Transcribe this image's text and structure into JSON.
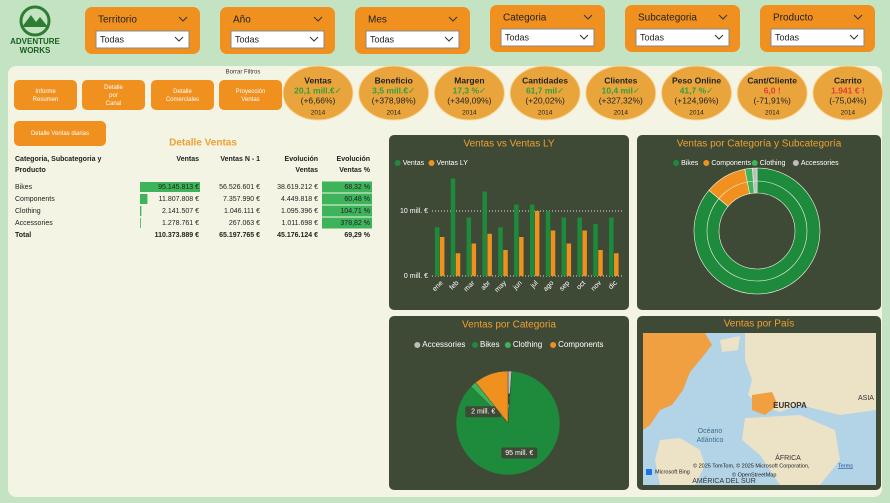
{
  "header": {
    "logo_line1": "ADVENTURE",
    "logo_line2": "WORKS"
  },
  "filters": [
    {
      "label": "Territorio",
      "value": "Todas"
    },
    {
      "label": "Año",
      "value": "Todas"
    },
    {
      "label": "Mes",
      "value": "Todas"
    },
    {
      "label": "Categoria",
      "value": "Todas"
    },
    {
      "label": "Subcategoria",
      "value": "Todas"
    },
    {
      "label": "Producto",
      "value": "Todas"
    }
  ],
  "buttons": [
    "Informe Resumen",
    "Detalle por Canal",
    "Detalle Comerciales",
    "Proyección Ventas"
  ],
  "clear_filters": "Borrar Filtros",
  "daily_button": "Detalle Ventas diarias",
  "kpis": [
    {
      "title": "Ventas",
      "value": "20,1 mill.€✓",
      "change": "(+6,66%)",
      "year": "2014",
      "color": "#2e9e3e"
    },
    {
      "title": "Beneficio",
      "value": "3,5 mill.€✓",
      "change": "(+378,98%)",
      "year": "2014",
      "color": "#2e9e3e"
    },
    {
      "title": "Margen",
      "value": "17,3 %✓",
      "change": "(+349,09%)",
      "year": "2014",
      "color": "#2e9e3e"
    },
    {
      "title": "Cantidades",
      "value": "61,7 mil✓",
      "change": "(+20,02%)",
      "year": "2014",
      "color": "#2e9e3e"
    },
    {
      "title": "Clientes",
      "value": "10,4 mil✓",
      "change": "(+327,32%)",
      "year": "2014",
      "color": "#2e9e3e"
    },
    {
      "title": "Peso Online",
      "value": "41,7 %✓",
      "change": "(+124,96%)",
      "year": "2014",
      "color": "#2e9e3e"
    },
    {
      "title": "Cant/Cliente",
      "value": "6,0 !",
      "change": "(-71,91%)",
      "year": "2014",
      "color": "#e53935"
    },
    {
      "title": "Carrito",
      "value": "1.941 € !",
      "change": "(-75,04%)",
      "year": "2014",
      "color": "#e53935"
    }
  ],
  "table": {
    "title": "Detalle Ventas",
    "columns": [
      "Categoria, Subcategoria y Producto",
      "Ventas",
      "Ventas N - 1",
      "Evolución Ventas",
      "Evolución Ventas %"
    ],
    "rows": [
      [
        "Bikes",
        "95.145.813 €",
        "56.526.601 €",
        "38.619.212 €",
        "68,32 %"
      ],
      [
        "Components",
        "11.807.808 €",
        "7.357.990 €",
        "4.449.818 €",
        "60,48 %"
      ],
      [
        "Clothing",
        "2.141.507 €",
        "1.046.111 €",
        "1.095.396 €",
        "104,71 %"
      ],
      [
        "Accessories",
        "1.278.761 €",
        "267.063 €",
        "1.011.698 €",
        "378,82 %"
      ]
    ],
    "total": [
      "Total",
      "110.373.889 €",
      "65.197.765 €",
      "45.176.124 €",
      "69,29 %"
    ]
  },
  "chart_data": [
    {
      "type": "bar",
      "title": "Ventas vs Ventas LY",
      "categories": [
        "ene",
        "feb",
        "mar",
        "abr",
        "may",
        "jun",
        "jul",
        "ago",
        "sep",
        "oct",
        "nov",
        "dic"
      ],
      "series": [
        {
          "name": "Ventas",
          "color": "#1e8a3c",
          "values": [
            7.5,
            15,
            9,
            13,
            7.5,
            11,
            11,
            10,
            9,
            9,
            8,
            9
          ]
        },
        {
          "name": "Ventas LY",
          "color": "#f0901e",
          "values": [
            6,
            3.5,
            5,
            6.5,
            4,
            6,
            10,
            7,
            5,
            7,
            4,
            3.5
          ]
        }
      ],
      "ylim": [
        0,
        16
      ],
      "yticks": [
        {
          "value": 0,
          "label": "0 mill. €"
        },
        {
          "value": 10,
          "label": "10 mill. €"
        }
      ],
      "grid": true
    },
    {
      "type": "donut",
      "title": "Ventas por Categoría y Subcategoría",
      "categories": [
        "Bikes",
        "Components",
        "Clothing",
        "Accessories"
      ],
      "values": [
        95.15,
        11.81,
        2.14,
        1.28
      ],
      "colors": [
        "#1e8a3c",
        "#f0901e",
        "#3db35a",
        "#bdbdbd"
      ]
    },
    {
      "type": "pie",
      "title": "Ventas por Categoria",
      "categories": [
        "Accessories",
        "Bikes",
        "Clothing",
        "Components"
      ],
      "values": [
        1.28,
        95.15,
        2.14,
        11.81
      ],
      "value_labels": [
        "1 mill. €",
        "95 mill. €",
        "2 mill. €",
        null
      ],
      "colors": [
        "#bdbdbd",
        "#1e8a3c",
        "#3db35a",
        "#f0901e"
      ]
    }
  ],
  "map": {
    "title": "Ventas por País",
    "europe": "EUROPA",
    "africa": "ÁFRICA",
    "asia": "ASIA",
    "ocean_line1": "Océano",
    "ocean_line2": "Atlántico",
    "south_america": "AMÉRICA DEL SUR",
    "attribution": "© 2025 TomTom, © 2025 Microsoft Corporation,",
    "terms": "Terms",
    "osm": "© OpenStreetMap",
    "bing": "Microsoft Bing"
  }
}
